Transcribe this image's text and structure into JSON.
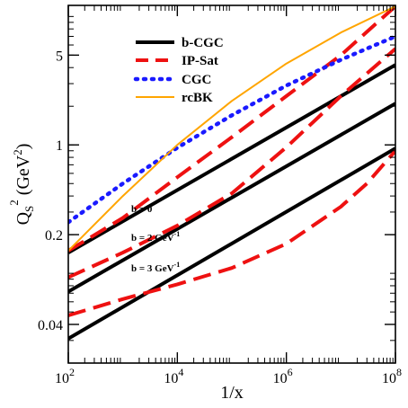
{
  "chart_data": {
    "type": "line",
    "xlabel": "1/x",
    "ylabel": "Q_S^2 (GeV^2)",
    "xscale": "log",
    "yscale": "log",
    "xlim": [
      100,
      100000000
    ],
    "ylim": [
      0.02,
      12.2
    ],
    "x_ticks": [
      {
        "value": 100,
        "base": "10",
        "exp": "2"
      },
      {
        "value": 10000,
        "base": "10",
        "exp": "4"
      },
      {
        "value": 1000000,
        "base": "10",
        "exp": "6"
      },
      {
        "value": 100000000,
        "base": "10",
        "exp": "8"
      }
    ],
    "y_ticks": [
      {
        "value": 0.04,
        "label": "0.04"
      },
      {
        "value": 0.2,
        "label": "0.2"
      },
      {
        "value": 1,
        "label": "1"
      },
      {
        "value": 5,
        "label": "5"
      }
    ],
    "legend": {
      "position": "top-left",
      "entries": [
        {
          "label": "b-CGC",
          "color": "#000000",
          "style": "solid"
        },
        {
          "label": "IP-Sat",
          "color": "#ee1111",
          "style": "dashed"
        },
        {
          "label": "CGC",
          "color": "#1a1aff",
          "style": "dotted"
        },
        {
          "label": "rcBK",
          "color": "#ffa500",
          "style": "solid-thin"
        }
      ]
    },
    "annotations": [
      {
        "text": "b = 0",
        "series": "b-CGC b=0"
      },
      {
        "text": "b = 2 GeV",
        "sup": "-1",
        "series": "b-CGC b=2"
      },
      {
        "text": "b = 3 GeV",
        "sup": "-1",
        "series": "b-CGC b=3"
      }
    ],
    "series": [
      {
        "style": "b-CGC",
        "x": [
          100,
          100000000
        ],
        "y": [
          0.145,
          4.2
        ]
      },
      {
        "style": "b-CGC",
        "x": [
          100,
          100000000
        ],
        "y": [
          0.072,
          2.1
        ]
      },
      {
        "style": "b-CGC",
        "x": [
          100,
          100000000
        ],
        "y": [
          0.031,
          0.94
        ]
      },
      {
        "style": "IP-Sat",
        "x": [
          100,
          1000,
          10000,
          100000,
          1000000,
          10000000,
          30000000,
          100000000
        ],
        "y": [
          0.15,
          0.27,
          0.56,
          1.15,
          2.4,
          5.0,
          7.6,
          12.0
        ]
      },
      {
        "style": "IP-Sat",
        "x": [
          100,
          1000,
          10000,
          100000,
          1000000,
          10000000,
          30000000,
          100000000
        ],
        "y": [
          0.093,
          0.145,
          0.235,
          0.42,
          0.96,
          2.4,
          3.6,
          5.6
        ]
      },
      {
        "style": "IP-Sat",
        "x": [
          100,
          1000,
          10000,
          100000,
          1000000,
          10000000,
          30000000,
          100000000
        ],
        "y": [
          0.047,
          0.063,
          0.082,
          0.11,
          0.17,
          0.33,
          0.5,
          0.9
        ]
      },
      {
        "style": "CGC",
        "x": [
          100,
          1000,
          10000,
          100000,
          1000000,
          10000000,
          100000000
        ],
        "y": [
          0.25,
          0.5,
          0.95,
          1.7,
          2.9,
          4.6,
          7.0
        ]
      },
      {
        "style": "rcBK",
        "x": [
          100,
          1000,
          10000,
          100000,
          1000000,
          10000000,
          100000000
        ],
        "y": [
          0.15,
          0.4,
          1.0,
          2.2,
          4.3,
          7.5,
          12.0
        ]
      }
    ]
  }
}
